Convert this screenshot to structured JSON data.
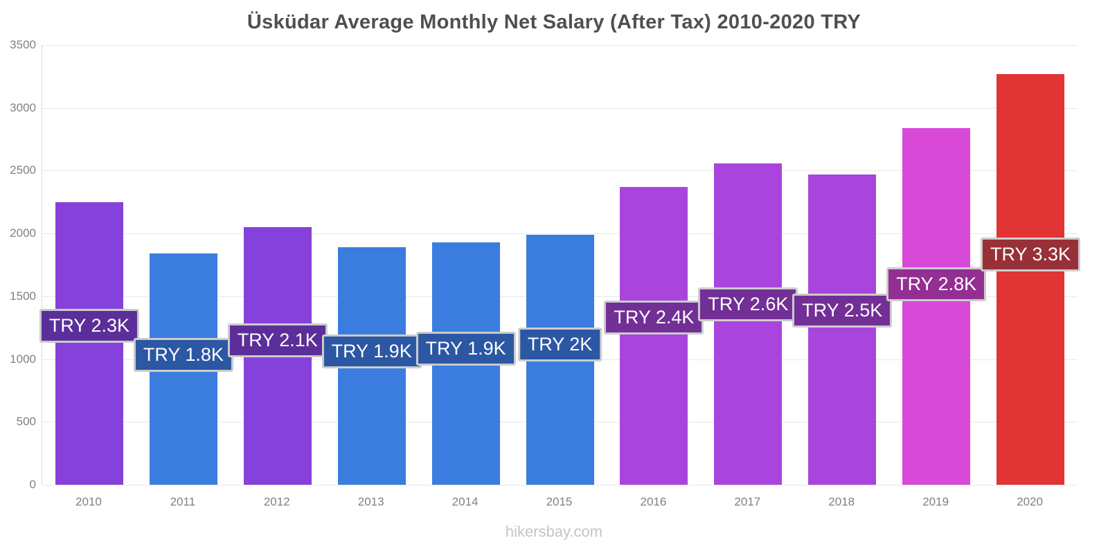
{
  "watermark": "hikersbay.com",
  "chart_data": {
    "type": "bar",
    "title": "Üsküdar Average Monthly Net Salary (After Tax) 2010-2020 TRY",
    "categories": [
      "2010",
      "2011",
      "2012",
      "2013",
      "2014",
      "2015",
      "2016",
      "2017",
      "2018",
      "2019",
      "2020"
    ],
    "values": [
      2250,
      1840,
      2050,
      1890,
      1930,
      1990,
      2370,
      2560,
      2470,
      2840,
      3270
    ],
    "labels": [
      "TRY 2.3K",
      "TRY 1.8K",
      "TRY 2.1K",
      "TRY 1.9K",
      "TRY 1.9K",
      "TRY 2K",
      "TRY 2.4K",
      "TRY 2.6K",
      "TRY 2.5K",
      "TRY 2.8K",
      "TRY 3.3K"
    ],
    "bar_colors": [
      "#8741db",
      "#3b7cdf",
      "#8741db",
      "#3b7cdf",
      "#3b7cdf",
      "#3b7cdf",
      "#a945dc",
      "#a945dc",
      "#a945dc",
      "#d849d8",
      "#e13434"
    ],
    "label_bg": [
      "#5b2f9a",
      "#2c57a3",
      "#5b2f9a",
      "#2c57a3",
      "#2c57a3",
      "#2c57a3",
      "#722f96",
      "#722f96",
      "#722f96",
      "#932e93",
      "#983038"
    ],
    "xlabel": "",
    "ylabel": "",
    "ylim": [
      0,
      3500
    ],
    "yticks": [
      0,
      500,
      1000,
      1500,
      2000,
      2500,
      3000,
      3500
    ],
    "grid": true,
    "legend": false
  }
}
